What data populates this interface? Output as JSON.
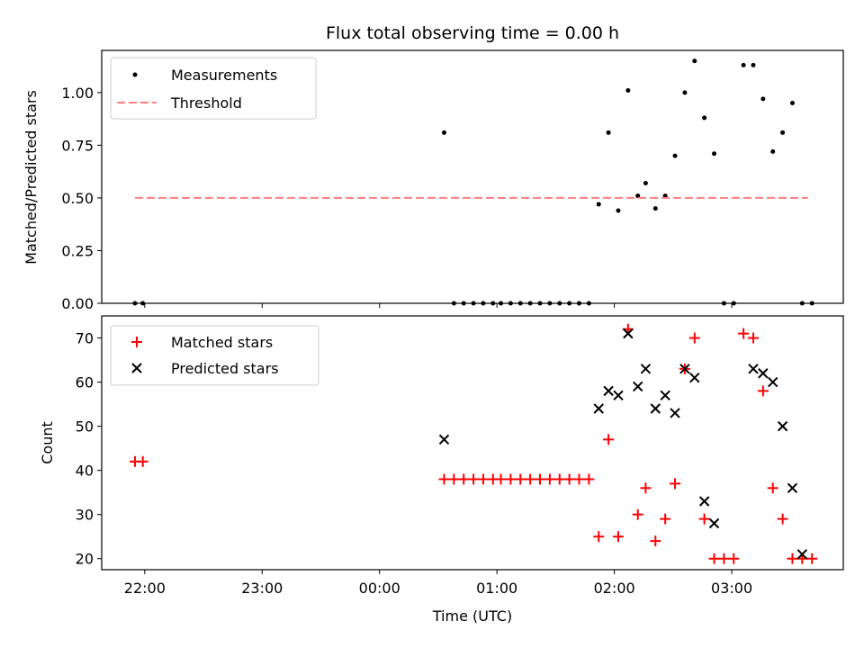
{
  "chart_data": [
    {
      "type": "scatter",
      "title": "Flux total observing time = 0.00 h",
      "xlabel": "",
      "ylabel": "Matched/Predicted stars",
      "x_axis": "time",
      "xlim": [
        "21:38",
        "03:57"
      ],
      "ylim": [
        0,
        1.2
      ],
      "yticks": [
        0.0,
        0.25,
        0.5,
        0.75,
        1.0
      ],
      "ytick_labels": [
        "0.00",
        "0.25",
        "0.50",
        "0.75",
        "1.00"
      ],
      "grid": false,
      "legend": "top-left",
      "series": [
        {
          "name": "Measurements",
          "kind": "scatter",
          "marker": "dot",
          "color": "#000000",
          "x": [
            "21:55",
            "21:59",
            "00:33",
            "00:38",
            "00:43",
            "00:48",
            "00:53",
            "00:58",
            "01:02",
            "01:07",
            "01:12",
            "01:17",
            "01:22",
            "01:27",
            "01:32",
            "01:37",
            "01:42",
            "01:47",
            "01:52",
            "01:57",
            "02:02",
            "02:07",
            "02:12",
            "02:16",
            "02:21",
            "02:26",
            "02:31",
            "02:36",
            "02:41",
            "02:46",
            "02:51",
            "02:56",
            "03:01",
            "03:06",
            "03:11",
            "03:16",
            "03:21",
            "03:26",
            "03:31",
            "03:36",
            "03:41"
          ],
          "y": [
            0.0,
            0.0,
            0.81,
            0.0,
            0.0,
            0.0,
            0.0,
            0.0,
            0.0,
            0.0,
            0.0,
            0.0,
            0.0,
            0.0,
            0.0,
            0.0,
            0.0,
            0.0,
            0.47,
            0.81,
            0.44,
            1.01,
            0.51,
            0.57,
            0.45,
            0.51,
            0.7,
            1.0,
            1.15,
            0.88,
            0.71,
            0.0,
            0.0,
            1.13,
            1.13,
            0.97,
            0.72,
            0.81,
            0.95,
            0.0,
            0.0
          ]
        },
        {
          "name": "Threshold",
          "kind": "line",
          "style": "dashed",
          "color": "#ff7f7f",
          "x": [
            "21:55",
            "03:39"
          ],
          "y": [
            0.5,
            0.5
          ]
        }
      ]
    },
    {
      "type": "scatter",
      "title": "",
      "xlabel": "Time (UTC)",
      "ylabel": "Count",
      "x_axis": "time",
      "xlim": [
        "21:38",
        "03:57"
      ],
      "ylim": [
        17.5,
        75
      ],
      "yticks": [
        20,
        30,
        40,
        50,
        60,
        70
      ],
      "xticks": [
        "22:00",
        "23:00",
        "00:00",
        "01:00",
        "02:00",
        "03:00"
      ],
      "grid": false,
      "legend": "top-left",
      "series": [
        {
          "name": "Matched stars",
          "marker": "plus",
          "color": "#ff0000",
          "x": [
            "21:55",
            "21:59",
            "00:33",
            "00:38",
            "00:43",
            "00:48",
            "00:53",
            "00:58",
            "01:02",
            "01:07",
            "01:12",
            "01:17",
            "01:22",
            "01:27",
            "01:32",
            "01:37",
            "01:42",
            "01:47",
            "01:52",
            "01:57",
            "02:02",
            "02:07",
            "02:12",
            "02:16",
            "02:21",
            "02:26",
            "02:31",
            "02:36",
            "02:41",
            "02:46",
            "02:51",
            "02:56",
            "03:01",
            "03:06",
            "03:11",
            "03:16",
            "03:21",
            "03:26",
            "03:31",
            "03:36",
            "03:41"
          ],
          "y": [
            42,
            42,
            38,
            38,
            38,
            38,
            38,
            38,
            38,
            38,
            38,
            38,
            38,
            38,
            38,
            38,
            38,
            38,
            25,
            47,
            25,
            72,
            30,
            36,
            24,
            29,
            37,
            63,
            70,
            29,
            20,
            20,
            20,
            71,
            70,
            58,
            36,
            29,
            20,
            20,
            20
          ]
        },
        {
          "name": "Predicted stars",
          "marker": "x",
          "color": "#000000",
          "x": [
            "00:33",
            "01:52",
            "01:57",
            "02:02",
            "02:07",
            "02:12",
            "02:16",
            "02:21",
            "02:26",
            "02:31",
            "02:36",
            "02:41",
            "02:46",
            "02:51",
            "03:11",
            "03:16",
            "03:21",
            "03:26",
            "03:31",
            "03:36"
          ],
          "y": [
            47,
            54,
            58,
            57,
            71,
            59,
            63,
            54,
            57,
            53,
            63,
            61,
            33,
            28,
            63,
            62,
            60,
            50,
            36,
            21
          ]
        }
      ]
    }
  ]
}
